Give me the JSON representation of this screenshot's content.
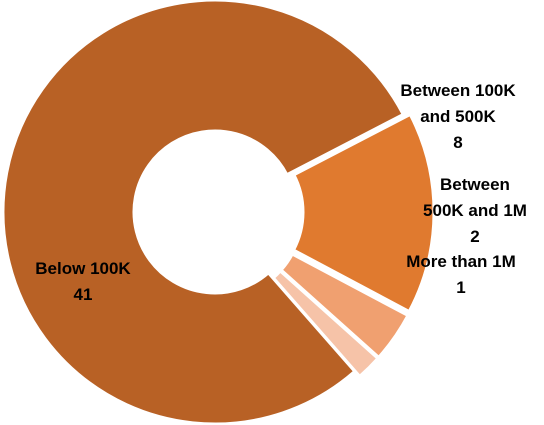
{
  "chart_data": {
    "type": "pie",
    "variant": "donut",
    "title": "",
    "legend": "none",
    "categories": [
      "Below 100K",
      "Between 100K and 500K",
      "Between 500K and 1M",
      "More than 1M"
    ],
    "values": [
      41,
      8,
      2,
      1
    ],
    "colors": [
      "#b86125",
      "#e07a2f",
      "#f0a070",
      "#f6c3a8"
    ],
    "data_labels": [
      {
        "lines": [
          "Below 100K",
          "41"
        ]
      },
      {
        "lines": [
          "Between 100K",
          "and 500K",
          "8"
        ]
      },
      {
        "lines": [
          "Between",
          "500K and 1M",
          "2"
        ]
      },
      {
        "lines": [
          "More than 1M",
          "1"
        ]
      }
    ],
    "separator_color": "#ffffff"
  }
}
